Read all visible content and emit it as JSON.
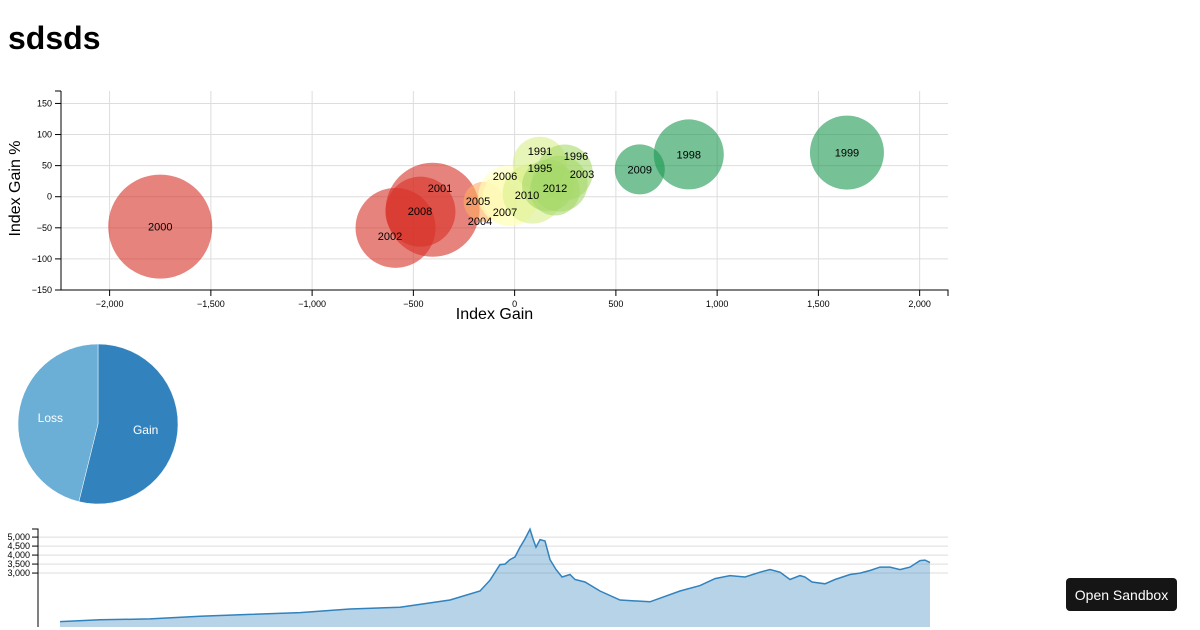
{
  "page": {
    "title": "sdsds",
    "sandbox_button": "Open Sandbox"
  },
  "chart_data": [
    {
      "type": "scatter",
      "subtype": "bubble",
      "xlabel": "Index Gain",
      "ylabel": "Index Gain %",
      "xlim": [
        -2240,
        2140
      ],
      "ylim": [
        -150,
        170
      ],
      "xticks": [
        -2000,
        -1500,
        -1000,
        -500,
        0,
        500,
        1000,
        1500,
        2000
      ],
      "xtick_labels": [
        "−2,000",
        "−1,500",
        "−1,000",
        "−500",
        "0",
        "500",
        "1,000",
        "1,500",
        "2,000"
      ],
      "yticks": [
        -150,
        -100,
        -50,
        0,
        50,
        100,
        150
      ],
      "ytick_labels": [
        "−150",
        "−100",
        "−50",
        "0",
        "50",
        "100",
        "150"
      ],
      "grid": true,
      "points": [
        {
          "label": "2000",
          "x": -1750,
          "y": -48,
          "size": 52,
          "color": "#d73027"
        },
        {
          "label": "2002",
          "x": -588,
          "y": -50,
          "size": 40,
          "color": "#d73027"
        },
        {
          "label": "2001",
          "x": -405,
          "y": -21,
          "size": 47,
          "color": "#d73027"
        },
        {
          "label": "2008",
          "x": -465,
          "y": -24,
          "size": 35,
          "color": "#d73027"
        },
        {
          "label": "2005",
          "x": -153,
          "y": -8,
          "size": 20,
          "color": "#fdae61"
        },
        {
          "label": "2004",
          "x": -84,
          "y": -2,
          "size": 20,
          "color": "#fee08b"
        },
        {
          "label": "2006",
          "x": -30,
          "y": 2,
          "size": 30,
          "color": "#ffffbf"
        },
        {
          "label": "2007",
          "x": -20,
          "y": -2,
          "size": 28,
          "color": "#ffffbf"
        },
        {
          "label": "2010",
          "x": 89,
          "y": 5,
          "size": 30,
          "color": "#d9ef8b"
        },
        {
          "label": "1991",
          "x": 124,
          "y": 53,
          "size": 27,
          "color": "#d9ef8b"
        },
        {
          "label": "1996",
          "x": 247,
          "y": 39,
          "size": 28,
          "color": "#a6d96a"
        },
        {
          "label": "2003",
          "x": 222,
          "y": 21,
          "size": 28,
          "color": "#a6d96a"
        },
        {
          "label": "1995",
          "x": 165,
          "y": 18,
          "size": 26,
          "color": "#a6d96a"
        },
        {
          "label": "2012",
          "x": 198,
          "y": 10,
          "size": 25,
          "color": "#a6d96a"
        },
        {
          "label": "2009",
          "x": 618,
          "y": 44,
          "size": 25,
          "color": "#1a9850"
        },
        {
          "label": "1998",
          "x": 860,
          "y": 68,
          "size": 35,
          "color": "#1a9850"
        },
        {
          "label": "1999",
          "x": 1641,
          "y": 71,
          "size": 37,
          "color": "#1a9850"
        }
      ]
    },
    {
      "type": "pie",
      "slices": [
        {
          "label": "Gain",
          "value": 14,
          "color": "#3182bd"
        },
        {
          "label": "Loss",
          "value": 12,
          "color": "#6baed6"
        }
      ]
    },
    {
      "type": "area",
      "ylim": [
        0,
        5450
      ],
      "yticks": [
        3000,
        3500,
        4000,
        4500,
        5000
      ],
      "ytick_labels": [
        "3,000",
        "3,500",
        "4,000",
        "4,500",
        "5,000"
      ],
      "grid": true,
      "color": "#3182bd",
      "x": [
        0,
        4,
        9,
        14,
        19,
        24,
        29,
        34,
        39,
        42,
        43,
        44,
        44.5,
        45,
        45.5,
        46,
        46.5,
        47,
        47.3,
        47.6,
        48,
        48.5,
        49,
        49.6,
        50.2,
        51,
        51.5,
        52.5,
        54,
        56,
        59,
        62,
        64,
        65.5,
        67,
        68.5,
        70,
        71,
        72,
        73,
        74,
        74.5,
        75.2,
        76.5,
        77.5,
        79,
        80,
        81,
        82,
        83,
        84,
        85,
        86,
        86.5,
        87
      ],
      "y": [
        300,
        400,
        450,
        600,
        700,
        800,
        1000,
        1100,
        1500,
        2000,
        2600,
        3470,
        3500,
        3750,
        3900,
        4440,
        4900,
        5440,
        4900,
        4440,
        4860,
        4780,
        3750,
        3200,
        2780,
        2920,
        2640,
        2500,
        2000,
        1500,
        1400,
        2000,
        2300,
        2690,
        2860,
        2780,
        3050,
        3200,
        3050,
        2640,
        2860,
        2780,
        2500,
        2400,
        2640,
        2920,
        3000,
        3140,
        3330,
        3330,
        3190,
        3330,
        3690,
        3720,
        3580
      ]
    }
  ]
}
